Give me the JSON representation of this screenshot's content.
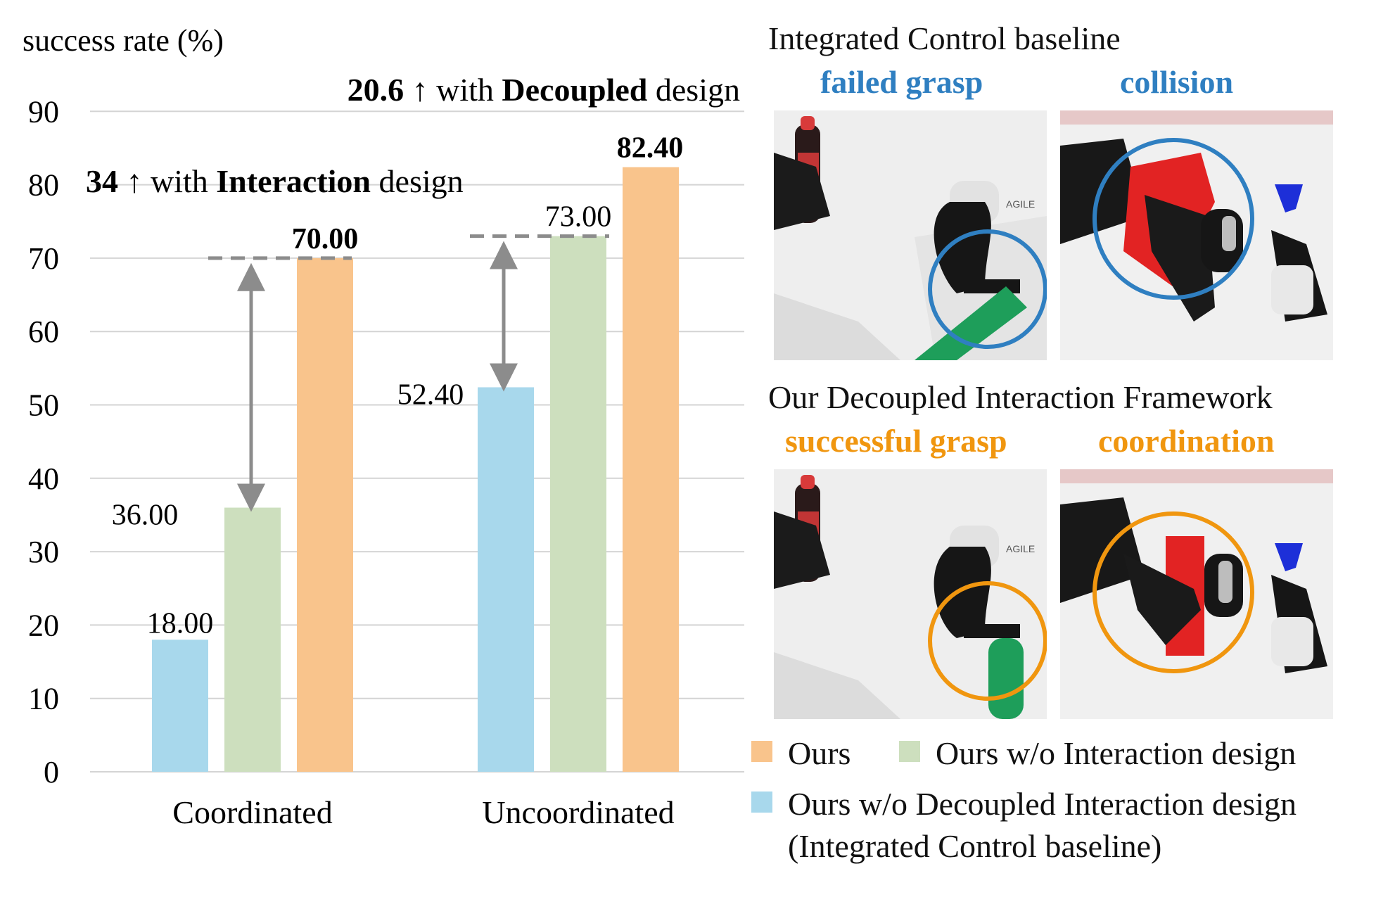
{
  "chart_data": {
    "type": "bar",
    "ylabel": "success rate (%)",
    "ylim": [
      0,
      90
    ],
    "yticks": [
      0,
      10,
      20,
      30,
      40,
      50,
      60,
      70,
      80,
      90
    ],
    "categories": [
      "Coordinated",
      "Uncoordinated"
    ],
    "series": [
      {
        "name": "Ours w/o Decoupled Interaction design (Integrated Control baseline)",
        "color": "#a8d8ec",
        "values": [
          18.0,
          52.4
        ],
        "labels": [
          "18.00",
          "52.40"
        ],
        "bold": false
      },
      {
        "name": "Ours w/o Interaction design",
        "color": "#cddfbe",
        "values": [
          36.0,
          73.0
        ],
        "labels": [
          "36.00",
          "73.00"
        ],
        "bold": false
      },
      {
        "name": "Ours",
        "color": "#f9c48c",
        "values": [
          70.0,
          82.4
        ],
        "labels": [
          "70.00",
          "82.40"
        ],
        "bold": true
      }
    ],
    "annotations": [
      {
        "value": "34",
        "arrow": "↑",
        "text_before": "with",
        "emph": "Interaction",
        "text_after": "design"
      },
      {
        "value": "20.6",
        "arrow": "↑",
        "text_before": "with",
        "emph": "Decoupled",
        "text_after": "design"
      }
    ]
  },
  "panels": {
    "baseline_title": "Integrated Control baseline",
    "baseline_color": "#2f7fc1",
    "baseline_labels": [
      "failed grasp",
      "collision"
    ],
    "ours_title": "Our Decoupled Interaction Framework",
    "ours_color": "#f0960f",
    "ours_labels": [
      "successful grasp",
      "coordination"
    ],
    "robot_text": "AGILE"
  },
  "legend": {
    "ours": "Ours",
    "ours_no_interaction": "Ours w/o Interaction design",
    "ours_no_decoupled": "Ours w/o Decoupled Interaction design",
    "ours_no_decoupled_sub": "(Integrated Control baseline)"
  }
}
